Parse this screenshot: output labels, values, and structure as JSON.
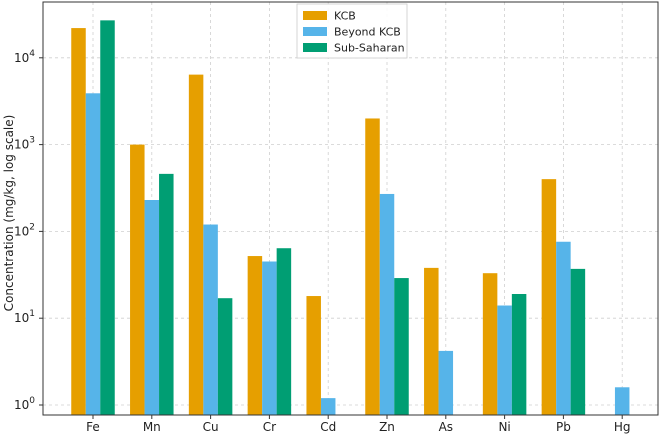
{
  "chart_data": {
    "type": "bar",
    "ylabel": "Concentration (mg/kg, log scale)",
    "yscale": "log",
    "ylim": [
      0.6,
      40000
    ],
    "yticks": [
      {
        "value": 1,
        "base": "10",
        "exp": "0"
      },
      {
        "value": 10,
        "base": "10",
        "exp": "1"
      },
      {
        "value": 100,
        "base": "10",
        "exp": "2"
      },
      {
        "value": 1000,
        "base": "10",
        "exp": "3"
      },
      {
        "value": 10000,
        "base": "10",
        "exp": "4"
      }
    ],
    "grid": true,
    "legend_position": "top-center",
    "categories": [
      "Fe",
      "Mn",
      "Cu",
      "Cr",
      "Cd",
      "Zn",
      "As",
      "Ni",
      "Pb",
      "Hg"
    ],
    "series": [
      {
        "name": "KCB",
        "color": "#E69F00",
        "values": [
          22000,
          1000,
          6400,
          52,
          18,
          2000,
          38,
          33,
          400,
          null
        ]
      },
      {
        "name": "Beyond KCB",
        "color": "#56B4E9",
        "values": [
          3900,
          230,
          120,
          45,
          1.2,
          270,
          4.2,
          14,
          76,
          1.6
        ]
      },
      {
        "name": "Sub-Saharan",
        "color": "#009E73",
        "values": [
          27000,
          460,
          17,
          64,
          null,
          29,
          null,
          19,
          37,
          null
        ]
      }
    ]
  }
}
